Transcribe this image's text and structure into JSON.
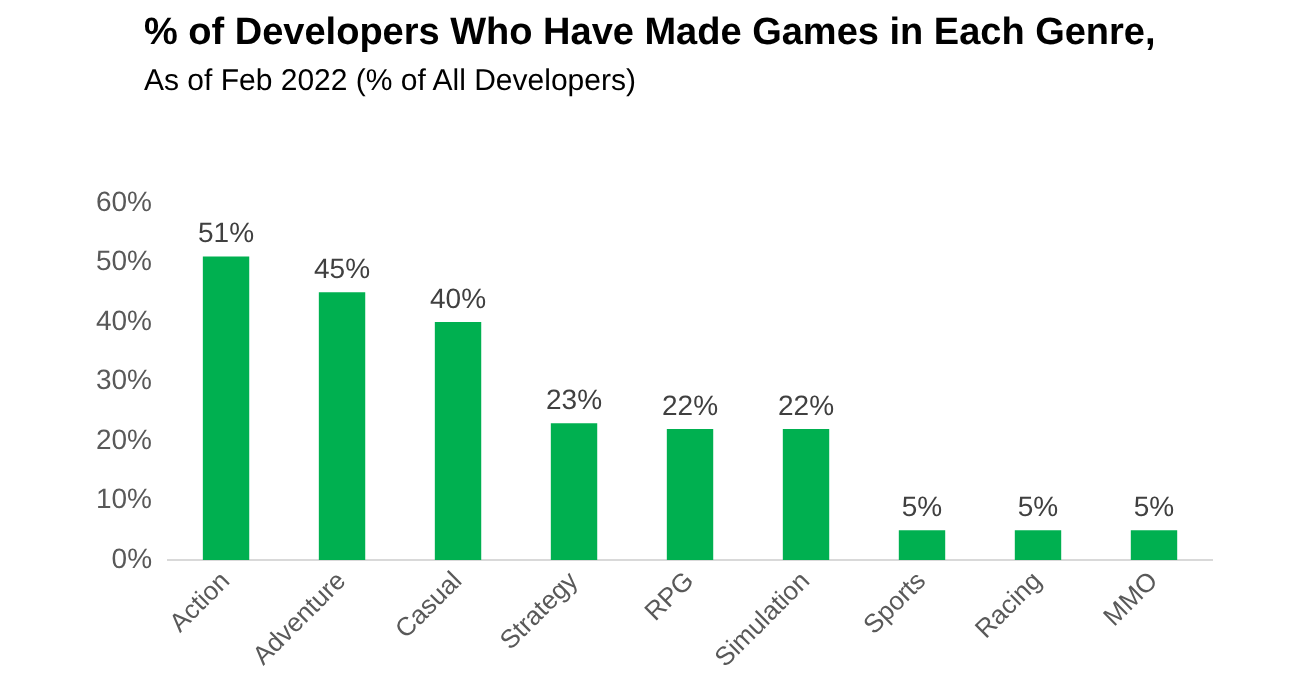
{
  "chart_data": {
    "type": "bar",
    "title": "% of Developers Who Have Made Games in Each Genre,",
    "subtitle": "As of Feb 2022 (% of All Developers)",
    "categories": [
      "Action",
      "Adventure",
      "Casual",
      "Strategy",
      "RPG",
      "Simulation",
      "Sports",
      "Racing",
      "MMO"
    ],
    "values": [
      51,
      45,
      40,
      23,
      22,
      22,
      5,
      5,
      5
    ],
    "value_labels": [
      "51%",
      "45%",
      "40%",
      "23%",
      "22%",
      "22%",
      "5%",
      "5%",
      "5%"
    ],
    "color": "#00b050",
    "ylim": [
      0,
      60
    ],
    "yticks": [
      {
        "value": 0,
        "label": "0%"
      },
      {
        "value": 10,
        "label": "10%"
      },
      {
        "value": 20,
        "label": "20%"
      },
      {
        "value": 30,
        "label": "30%"
      },
      {
        "value": 40,
        "label": "40%"
      },
      {
        "value": 50,
        "label": "50%"
      },
      {
        "value": 60,
        "label": "60%"
      }
    ],
    "grid": false,
    "legend": false
  }
}
